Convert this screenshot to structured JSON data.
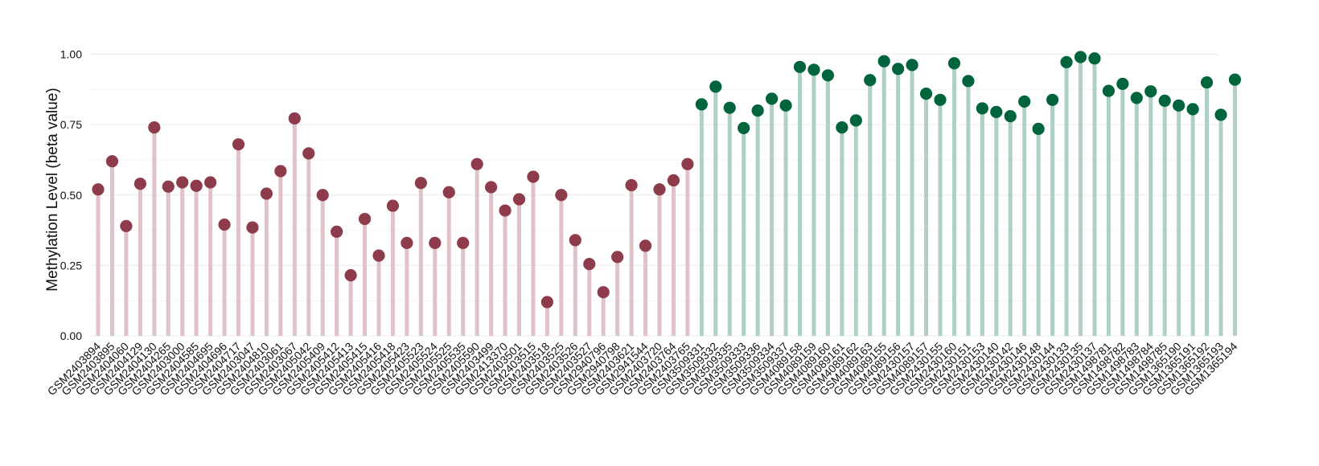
{
  "chart_data": {
    "type": "lollipop",
    "title": "",
    "xlabel": "",
    "ylabel": "Methylation Level (beta value)",
    "ylim": [
      0,
      1.05
    ],
    "yticks": [
      "0.00",
      "0.25",
      "0.50",
      "0.75",
      "1.00"
    ],
    "grid": true,
    "legend": "none",
    "colors": {
      "group1_point": "#8e3b4c",
      "group1_stem": "#dfc3c8",
      "group2_point": "#00643c",
      "group2_stem": "#afd0c4",
      "grid": "#ececec"
    },
    "groups": [
      {
        "group": "group1",
        "samples": [
          "GSM2403894",
          "GSM2403895",
          "GSM2404060",
          "GSM2404129",
          "GSM2404130",
          "GSM2404265",
          "GSM2403000",
          "GSM2404585",
          "GSM2404695",
          "GSM2404696",
          "GSM2404717",
          "GSM2403047",
          "GSM2404810",
          "GSM2403061",
          "GSM2403067",
          "GSM2405042",
          "GSM2405409",
          "GSM2405412",
          "GSM2405413",
          "GSM2405415",
          "GSM2405416",
          "GSM2405418",
          "GSM2405423",
          "GSM2405523",
          "GSM2405524",
          "GSM2405525",
          "GSM2405535",
          "GSM2405590",
          "GSM2403499",
          "GSM2413370",
          "GSM2403501",
          "GSM2403515",
          "GSM2403518",
          "GSM2403525",
          "GSM2403526",
          "GSM2403527",
          "GSM2940796",
          "GSM2940798",
          "GSM2403621",
          "GSM2941544",
          "GSM2403720",
          "GSM2403764",
          "GSM2403765"
        ],
        "values": [
          0.52,
          0.62,
          0.39,
          0.54,
          0.74,
          0.53,
          0.545,
          0.533,
          0.545,
          0.395,
          0.68,
          0.385,
          0.505,
          0.585,
          0.772,
          0.648,
          0.5,
          0.37,
          0.215,
          0.415,
          0.285,
          0.462,
          0.33,
          0.543,
          0.33,
          0.51,
          0.33,
          0.61,
          0.528,
          0.445,
          0.485,
          0.565,
          0.12,
          0.5,
          0.34,
          0.255,
          0.155,
          0.28,
          0.535,
          0.32,
          0.52,
          0.552,
          0.61
        ]
      },
      {
        "group": "group2",
        "samples": [
          "GSM3509331",
          "GSM3509332",
          "GSM3509335",
          "GSM3509333",
          "GSM3509336",
          "GSM3509334",
          "GSM3509337",
          "GSM4089158",
          "GSM4089159",
          "GSM4089160",
          "GSM4089161",
          "GSM4089162",
          "GSM4089163",
          "GSM4089155",
          "GSM4089156",
          "GSM2430157",
          "GSM4089157",
          "GSM2430155",
          "GSM2430160",
          "GSM2430151",
          "GSM2430153",
          "GSM2430140",
          "GSM2430142",
          "GSM2430146",
          "GSM2430148",
          "GSM2430144",
          "GSM2430133",
          "GSM2430135",
          "GSM2430137",
          "GSM1498781",
          "GSM1498782",
          "GSM1498783",
          "GSM1498784",
          "GSM1498785",
          "GSM1365190",
          "GSM1365191",
          "GSM1365192",
          "GSM1365193",
          "GSM1365194"
        ],
        "values": [
          0.822,
          0.885,
          0.81,
          0.738,
          0.8,
          0.842,
          0.818,
          0.955,
          0.945,
          0.925,
          0.74,
          0.765,
          0.908,
          0.975,
          0.948,
          0.962,
          0.86,
          0.838,
          0.968,
          0.905,
          0.808,
          0.795,
          0.78,
          0.832,
          0.735,
          0.838,
          0.972,
          0.99,
          0.985,
          0.87,
          0.895,
          0.845,
          0.868,
          0.835,
          0.818,
          0.805,
          0.9,
          0.785,
          0.91
        ]
      }
    ]
  }
}
